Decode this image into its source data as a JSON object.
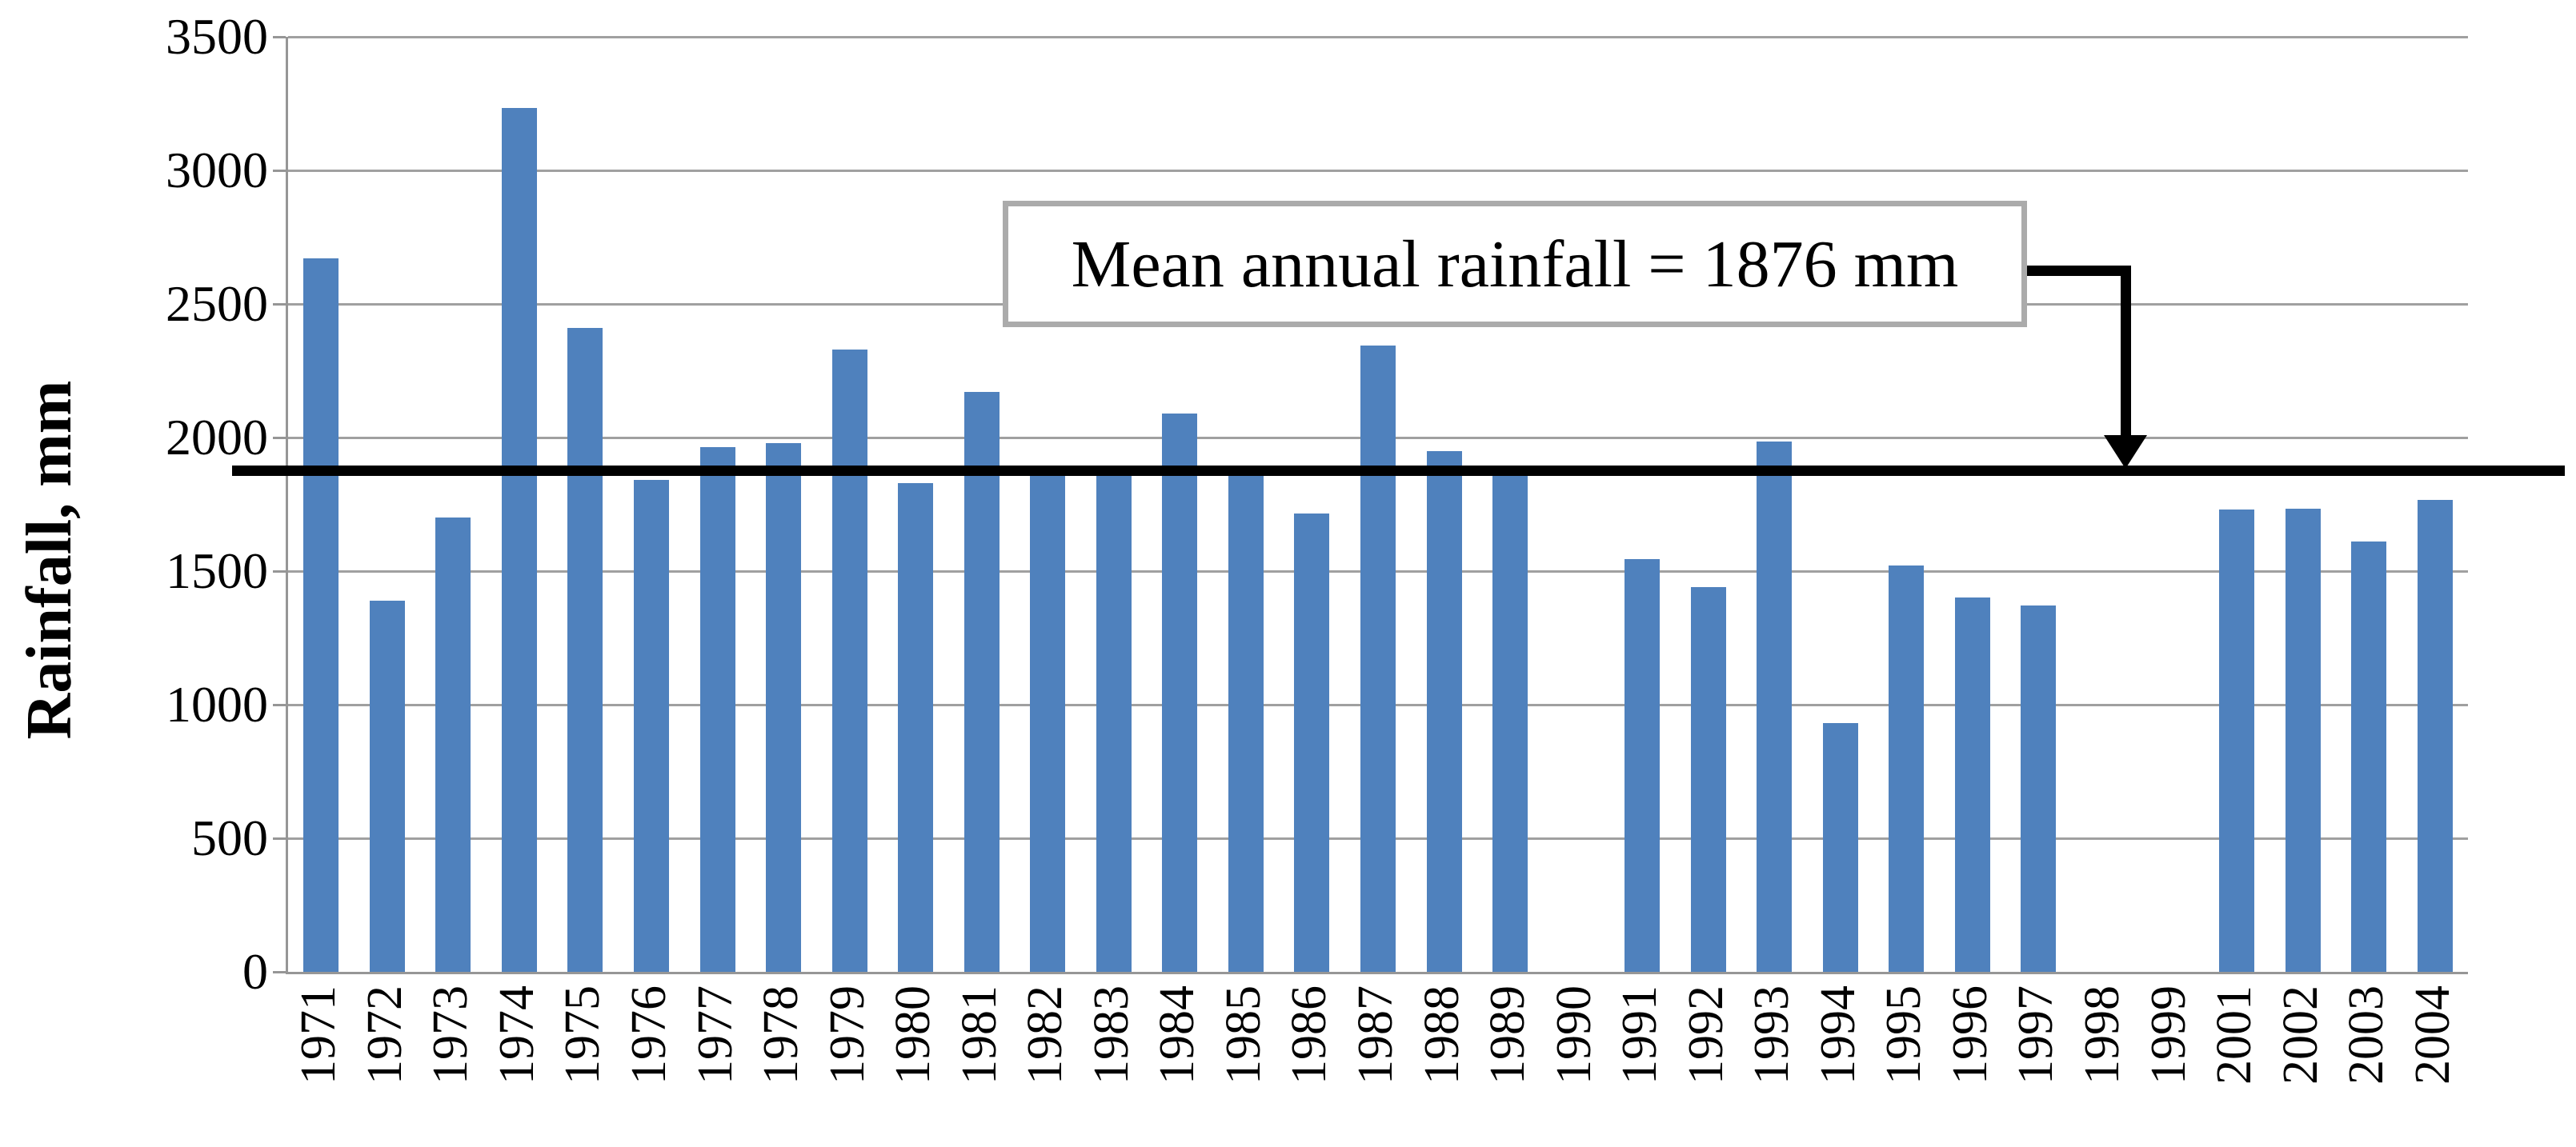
{
  "chart_data": {
    "type": "bar",
    "title": "",
    "xlabel": "",
    "ylabel": "Rainfall, mm",
    "ylim": [
      0,
      3500
    ],
    "yticks": [
      0,
      500,
      1000,
      1500,
      2000,
      2500,
      3000,
      3500
    ],
    "grid": "horizontal",
    "legend_position": "none",
    "categories": [
      "1971",
      "1972",
      "1973",
      "1974",
      "1975",
      "1976",
      "1977",
      "1978",
      "1979",
      "1980",
      "1981",
      "1982",
      "1983",
      "1984",
      "1985",
      "1986",
      "1987",
      "1988",
      "1989",
      "1990",
      "1991",
      "1992",
      "1993",
      "1994",
      "1995",
      "1996",
      "1997",
      "1998",
      "1999",
      "2001",
      "2002",
      "2003",
      "2004"
    ],
    "values": [
      2670,
      1390,
      1700,
      3235,
      2410,
      1840,
      1965,
      1980,
      2330,
      1830,
      2170,
      1895,
      1870,
      2090,
      1895,
      1715,
      2345,
      1950,
      1880,
      0,
      1545,
      1440,
      1985,
      930,
      1520,
      1400,
      1370,
      0,
      0,
      1730,
      1735,
      1610,
      1765
    ],
    "mean_value": 1876,
    "annotation": "Mean annual rainfall = 1876 mm",
    "bar_color": "#4F81BD",
    "gridline_color": "#a0a0a0",
    "mean_line_color": "#000000"
  }
}
